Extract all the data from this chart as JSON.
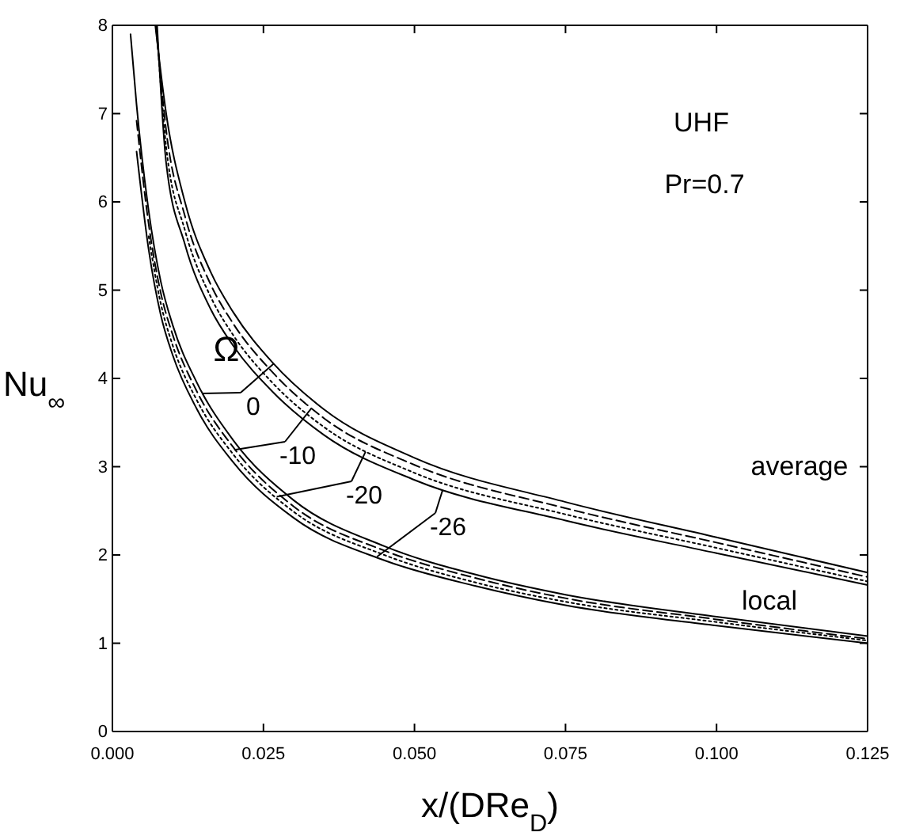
{
  "chart_data": {
    "type": "line",
    "xlabel": "x/(DRe$_{D}$)",
    "ylabel": "Nu$_{∞}$",
    "xlim": [
      0,
      0.125
    ],
    "ylim": [
      0,
      8
    ],
    "xticks": [
      {
        "value": 0,
        "label": "0.000"
      },
      {
        "value": 0.025,
        "label": "0.025"
      },
      {
        "value": 0.05,
        "label": "0.050"
      },
      {
        "value": 0.075,
        "label": "0.075"
      },
      {
        "value": 0.1,
        "label": "0.100"
      },
      {
        "value": 0.125,
        "label": "0.125"
      }
    ],
    "yticks": [
      0,
      1,
      2,
      3,
      4,
      5,
      6,
      7,
      8
    ],
    "grid": false,
    "marker": "none",
    "series": [
      {
        "color": "#000000",
        "line_style": "solid",
        "x": [
          0.003,
          0.004,
          0.006,
          0.008,
          0.01,
          0.014,
          0.02,
          0.03,
          0.045,
          0.06,
          0.075,
          0.1,
          0.125
        ],
        "values": [
          7.9,
          7.1,
          5.9,
          5.1,
          4.6,
          3.95,
          3.3,
          2.62,
          2.1,
          1.78,
          1.55,
          1.3,
          1.08
        ]
      },
      {
        "color": "#000000",
        "line_style": "dashed",
        "x": [
          0.004,
          0.006,
          0.008,
          0.01,
          0.014,
          0.02,
          0.03,
          0.045,
          0.06,
          0.075,
          0.1,
          0.125
        ],
        "values": [
          6.92,
          5.75,
          4.97,
          4.49,
          3.85,
          3.22,
          2.55,
          2.05,
          1.74,
          1.51,
          1.27,
          1.05
        ]
      },
      {
        "color": "#000000",
        "line_style": "dotted",
        "x": [
          0.006,
          0.008,
          0.01,
          0.014,
          0.02,
          0.03,
          0.045,
          0.06,
          0.075,
          0.1,
          0.125
        ],
        "values": [
          5.61,
          4.85,
          4.37,
          3.75,
          3.14,
          2.49,
          2.0,
          1.69,
          1.47,
          1.24,
          1.03
        ]
      },
      {
        "color": "#000000",
        "line_style": "solid",
        "x": [
          0.004,
          0.006,
          0.008,
          0.01,
          0.014,
          0.02,
          0.03,
          0.045,
          0.06,
          0.075,
          0.1,
          0.125
        ],
        "values": [
          6.57,
          5.46,
          4.72,
          4.26,
          3.65,
          3.05,
          2.42,
          1.94,
          1.65,
          1.43,
          1.2,
          1.0
        ]
      },
      {
        "color": "#000000",
        "line_style": "solid",
        "x": [
          0.0071,
          0.0089,
          0.012,
          0.0163,
          0.02,
          0.0265,
          0.035,
          0.05,
          0.075,
          0.1,
          0.125
        ],
        "values": [
          8,
          7,
          6,
          5.2,
          4.75,
          4.18,
          3.65,
          3.1,
          2.6,
          2.2,
          1.8
        ]
      },
      {
        "color": "#000000",
        "line_style": "dashed",
        "x": [
          0.0072,
          0.0089,
          0.012,
          0.0163,
          0.02,
          0.0265,
          0.035,
          0.05,
          0.075,
          0.1,
          0.125
        ],
        "values": [
          8,
          6.81,
          5.84,
          5.06,
          4.62,
          4.07,
          3.55,
          3.02,
          2.53,
          2.14,
          1.75
        ]
      },
      {
        "color": "#000000",
        "line_style": "dotted",
        "x": [
          0.0073,
          0.0089,
          0.012,
          0.0163,
          0.02,
          0.0265,
          0.035,
          0.05,
          0.075,
          0.1,
          0.125
        ],
        "values": [
          8,
          6.62,
          5.68,
          4.92,
          4.49,
          3.95,
          3.45,
          2.93,
          2.46,
          2.08,
          1.7
        ]
      },
      {
        "color": "#000000",
        "line_style": "solid",
        "x": [
          0.0074,
          0.0089,
          0.012,
          0.0163,
          0.02,
          0.0265,
          0.035,
          0.05,
          0.075,
          0.1,
          0.125
        ],
        "values": [
          8,
          6.44,
          5.52,
          4.78,
          4.37,
          3.85,
          3.36,
          2.85,
          2.39,
          2.02,
          1.66
        ]
      }
    ],
    "annotations": [
      "Ω",
      {
        "text": "0",
        "x": 0.0149,
        "y": 3.83
      },
      {
        "text": "-10",
        "x": 0.0202,
        "y": 3.19
      },
      {
        "text": "-20",
        "x": 0.0272,
        "y": 2.66
      },
      {
        "text": "-26",
        "x": 0.0438,
        "y": 1.98
      },
      "average",
      "local",
      "UHF",
      "Pr=0.7"
    ]
  }
}
